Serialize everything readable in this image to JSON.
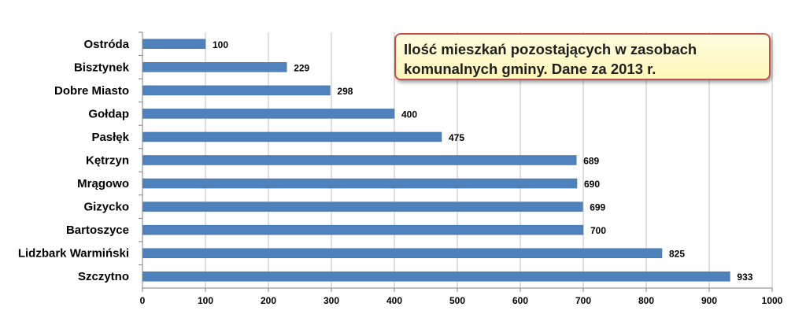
{
  "chart_data": {
    "type": "bar",
    "orientation": "horizontal",
    "title_lines": [
      "Ilość mieszkań pozostających w zasobach",
      "komunalnych gminy. Dane za 2013 r."
    ],
    "categories": [
      "Ostróda",
      "Bisztynek",
      "Dobre Miasto",
      "Gołdap",
      "Pasłęk",
      "Kętrzyn",
      "Mrągowo",
      "Gizycko",
      "Bartoszyce",
      "Lidzbark Warmiński",
      "Szczytno"
    ],
    "values": [
      100,
      229,
      298,
      400,
      475,
      689,
      690,
      699,
      700,
      825,
      933
    ],
    "xlim": [
      0,
      1000
    ],
    "xticks": [
      0,
      100,
      200,
      300,
      400,
      500,
      600,
      700,
      800,
      900,
      1000
    ],
    "grid": "vertical",
    "data_labels": true,
    "colors": {
      "bar": "#4f81bd",
      "bar_edge": "#3a6aa3",
      "grid": "#bfbfbf",
      "axis": "#808080"
    }
  }
}
